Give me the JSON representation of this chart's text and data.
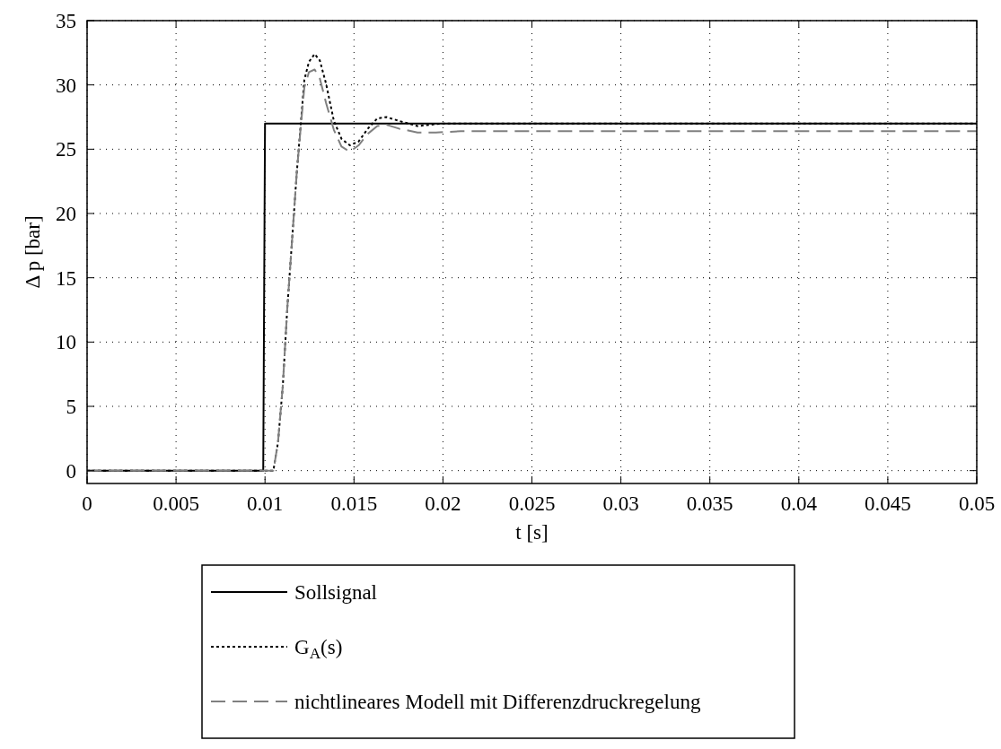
{
  "chart_data": {
    "type": "line",
    "xlabel": "t [s]",
    "ylabel": "Δ p [bar]",
    "xlim": [
      0,
      0.05
    ],
    "ylim": [
      -1,
      35
    ],
    "xticks": [
      0,
      0.005,
      0.01,
      0.015,
      0.02,
      0.025,
      0.03,
      0.035,
      0.04,
      0.045,
      0.05
    ],
    "yticks": [
      0,
      5,
      10,
      15,
      20,
      25,
      30,
      35
    ],
    "grid": true,
    "legend": "bottom",
    "marker": "none",
    "series": [
      {
        "name": "Sollsignal",
        "color": "#000000",
        "line_style": "solid",
        "x": [
          0,
          0.0099,
          0.01,
          0.05
        ],
        "values": [
          0,
          0,
          27,
          27
        ]
      },
      {
        "name": "G$_{A}$(s)",
        "color": "#000000",
        "line_style": "dotted",
        "x": [
          0,
          0.01047,
          0.01073,
          0.011,
          0.01125,
          0.01152,
          0.01178,
          0.012,
          0.01221,
          0.01247,
          0.01279,
          0.01308,
          0.01343,
          0.01387,
          0.0143,
          0.01477,
          0.01526,
          0.01578,
          0.01631,
          0.01683,
          0.01753,
          0.01857,
          0.01997,
          0.021,
          0.05
        ],
        "values": [
          0,
          0,
          2.2,
          6.6,
          12.6,
          17.9,
          23.1,
          26.8,
          30.4,
          31.8,
          32.4,
          31.9,
          30.1,
          27.2,
          25.8,
          25.3,
          25.6,
          26.6,
          27.4,
          27.5,
          27.2,
          26.8,
          27,
          27,
          27
        ]
      },
      {
        "name": "nichtlineares Modell mit Differenzdruckregelung",
        "color": "#808080",
        "line_style": "dashed",
        "x": [
          0,
          0.01047,
          0.01073,
          0.011,
          0.01125,
          0.01152,
          0.01178,
          0.012,
          0.01221,
          0.01247,
          0.01279,
          0.01308,
          0.01343,
          0.01387,
          0.0143,
          0.01477,
          0.01526,
          0.01578,
          0.01631,
          0.01683,
          0.01753,
          0.01857,
          0.0196,
          0.021,
          0.05
        ],
        "values": [
          0,
          0,
          2.2,
          6.6,
          12.6,
          17.9,
          23.1,
          26.6,
          29.8,
          31,
          31.2,
          30.5,
          28.6,
          26.5,
          25.2,
          24.8,
          25.3,
          26.2,
          26.8,
          26.9,
          26.6,
          26.3,
          26.3,
          26.4,
          26.4
        ]
      }
    ]
  }
}
